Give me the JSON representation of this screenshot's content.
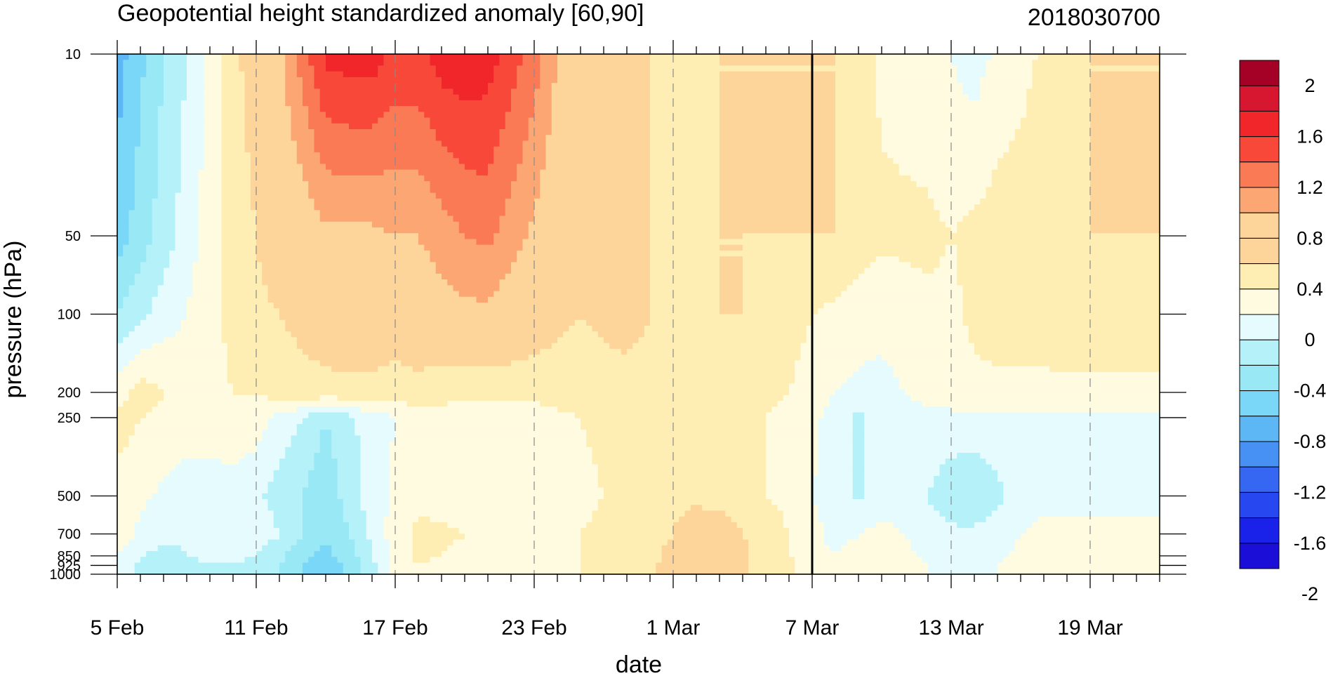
{
  "chart_data": {
    "type": "heatmap",
    "title": "Geopotential height standardized anomaly [60,90]",
    "right_title": "2018030700",
    "xlabel": "date",
    "ylabel": "pressure (hPa)",
    "x_tick_labels": [
      "5 Feb",
      "11 Feb",
      "17 Feb",
      "23 Feb",
      "1 Mar",
      "7 Mar",
      "13 Mar",
      "19 Mar"
    ],
    "x_tick_days": [
      0,
      6,
      12,
      18,
      24,
      30,
      36,
      42
    ],
    "x_range_days": [
      0,
      45
    ],
    "current_date_day": 30,
    "y_ticks": [
      {
        "p": 10,
        "label": "10"
      },
      {
        "p": 50,
        "label": "50"
      },
      {
        "p": 100,
        "label": "100"
      },
      {
        "p": 200,
        "label": "200"
      },
      {
        "p": 250,
        "label": "250"
      },
      {
        "p": 500,
        "label": "500"
      },
      {
        "p": 700,
        "label": "700"
      },
      {
        "p": 850,
        "label": "850"
      },
      {
        "p": 925,
        "label": "925"
      },
      {
        "p": 1000,
        "label": "1000"
      }
    ],
    "y_range_hpa": [
      1000,
      10
    ],
    "y_scale": "log",
    "colorbar": {
      "labels": [
        "2",
        "1.6",
        "1.2",
        "0.8",
        "0.4",
        "0",
        "-0.4",
        "-0.8",
        "-1.2",
        "-1.6",
        "-2"
      ],
      "colors": [
        "#a50026",
        "#d7172f",
        "#f0262b",
        "#f74839",
        "#fa7a56",
        "#fca773",
        "#fdd49a",
        "#fdd49a",
        "#feeeb4",
        "#fffbe1",
        "#e5fbfd",
        "#b4f1f9",
        "#98e8f6",
        "#7ad7f7",
        "#5eb7f5",
        "#4791f5",
        "#3667f3",
        "#2747f0",
        "#1a22ea",
        "#1a0ed7"
      ]
    },
    "dates": [
      "5 Feb",
      "6 Feb",
      "7 Feb",
      "8 Feb",
      "9 Feb",
      "10 Feb",
      "11 Feb",
      "12 Feb",
      "13 Feb",
      "14 Feb",
      "15 Feb",
      "16 Feb",
      "17 Feb",
      "18 Feb",
      "19 Feb",
      "20 Feb",
      "21 Feb",
      "22 Feb",
      "23 Feb",
      "24 Feb",
      "25 Feb",
      "26 Feb",
      "27 Feb",
      "28 Feb",
      "1 Mar",
      "2 Mar",
      "3 Mar",
      "4 Mar",
      "5 Mar",
      "6 Mar",
      "7 Mar",
      "8 Mar",
      "9 Mar",
      "10 Mar",
      "11 Mar",
      "12 Mar",
      "13 Mar",
      "14 Mar",
      "15 Mar",
      "16 Mar",
      "17 Mar",
      "18 Mar",
      "19 Mar",
      "20 Mar",
      "21 Mar"
    ],
    "levels_hpa": [
      10,
      50,
      100,
      200,
      250,
      500,
      700,
      850,
      925,
      1000
    ],
    "values": [
      [
        -0.7,
        -0.45,
        -0.2,
        0.0,
        0.25,
        0.55,
        0.7,
        0.95,
        1.3,
        1.65,
        1.7,
        1.7,
        1.55,
        1.55,
        1.7,
        1.75,
        1.7,
        1.5,
        1.3,
        1.0,
        0.9,
        0.8,
        0.75,
        0.6,
        0.55,
        0.5,
        0.6,
        0.6,
        0.6,
        0.6,
        0.6,
        0.6,
        0.5,
        0.35,
        0.3,
        0.25,
        0.2,
        0.1,
        0.25,
        0.3,
        0.45,
        0.55,
        0.6,
        0.6,
        0.6
      ],
      [
        -0.5,
        -0.3,
        -0.1,
        0.1,
        0.3,
        0.5,
        0.6,
        0.75,
        0.85,
        0.95,
        0.95,
        0.95,
        1.0,
        1.0,
        1.1,
        1.2,
        1.25,
        1.1,
        0.95,
        0.8,
        0.75,
        0.7,
        0.65,
        0.6,
        0.55,
        0.55,
        0.6,
        0.6,
        0.6,
        0.6,
        0.6,
        0.6,
        0.5,
        0.45,
        0.45,
        0.45,
        0.4,
        0.45,
        0.5,
        0.55,
        0.6,
        0.6,
        0.6,
        0.6,
        0.6
      ],
      [
        -0.2,
        -0.05,
        0.1,
        0.2,
        0.35,
        0.45,
        0.55,
        0.6,
        0.65,
        0.7,
        0.75,
        0.75,
        0.75,
        0.85,
        0.9,
        0.95,
        0.95,
        0.85,
        0.75,
        0.65,
        0.6,
        0.65,
        0.7,
        0.6,
        0.55,
        0.6,
        0.6,
        0.6,
        0.55,
        0.5,
        0.4,
        0.35,
        0.3,
        0.25,
        0.3,
        0.35,
        0.35,
        0.45,
        0.5,
        0.5,
        0.5,
        0.55,
        0.55,
        0.55,
        0.55
      ],
      [
        0.3,
        0.5,
        0.4,
        0.3,
        0.35,
        0.4,
        0.4,
        0.5,
        0.55,
        0.55,
        0.55,
        0.55,
        0.5,
        0.5,
        0.45,
        0.45,
        0.45,
        0.45,
        0.45,
        0.5,
        0.5,
        0.5,
        0.5,
        0.5,
        0.5,
        0.5,
        0.5,
        0.5,
        0.45,
        0.4,
        0.3,
        0.2,
        0.15,
        0.15,
        0.2,
        0.25,
        0.3,
        0.35,
        0.35,
        0.35,
        0.35,
        0.35,
        0.35,
        0.35,
        0.35
      ],
      [
        0.5,
        0.4,
        0.35,
        0.3,
        0.3,
        0.35,
        0.3,
        0.15,
        0.0,
        -0.2,
        -0.05,
        0.1,
        0.2,
        0.35,
        0.35,
        0.3,
        0.25,
        0.25,
        0.3,
        0.35,
        0.4,
        0.45,
        0.5,
        0.5,
        0.5,
        0.5,
        0.45,
        0.45,
        0.4,
        0.35,
        0.25,
        0.1,
        -0.05,
        0.1,
        0.15,
        0.15,
        0.15,
        0.15,
        0.15,
        0.15,
        0.15,
        0.15,
        0.15,
        0.15,
        0.15
      ],
      [
        0.3,
        0.25,
        0.15,
        0.1,
        0.1,
        0.1,
        0.05,
        -0.1,
        -0.2,
        -0.35,
        -0.1,
        0.1,
        0.25,
        0.35,
        0.3,
        0.25,
        0.2,
        0.25,
        0.3,
        0.3,
        0.35,
        0.4,
        0.5,
        0.55,
        0.55,
        0.55,
        0.5,
        0.45,
        0.4,
        0.35,
        0.2,
        0.1,
        -0.05,
        0.1,
        0.1,
        0.0,
        -0.15,
        -0.2,
        -0.05,
        0.1,
        0.15,
        0.15,
        0.15,
        0.15,
        0.15
      ],
      [
        0.35,
        0.15,
        0.1,
        0.05,
        0.0,
        0.05,
        0.15,
        0.0,
        -0.2,
        -0.4,
        -0.2,
        0.05,
        0.3,
        0.45,
        0.45,
        0.4,
        0.3,
        0.3,
        0.35,
        0.35,
        0.4,
        0.45,
        0.5,
        0.55,
        0.6,
        0.75,
        0.75,
        0.6,
        0.5,
        0.4,
        0.25,
        0.15,
        0.2,
        0.25,
        0.2,
        0.1,
        0.05,
        0.05,
        0.1,
        0.2,
        0.25,
        0.25,
        0.25,
        0.25,
        0.25
      ],
      [
        0.2,
        0.0,
        -0.1,
        0.0,
        0.05,
        0.05,
        0.0,
        -0.15,
        -0.35,
        -0.45,
        -0.3,
        0.0,
        0.3,
        0.45,
        0.4,
        0.35,
        0.3,
        0.3,
        0.35,
        0.35,
        0.4,
        0.45,
        0.5,
        0.55,
        0.65,
        0.85,
        0.85,
        0.65,
        0.5,
        0.4,
        0.25,
        0.2,
        0.25,
        0.3,
        0.25,
        0.15,
        0.1,
        0.1,
        0.15,
        0.25,
        0.3,
        0.3,
        0.3,
        0.3,
        0.3
      ],
      [
        0.15,
        -0.05,
        -0.1,
        -0.05,
        0.0,
        0.0,
        -0.05,
        -0.2,
        -0.4,
        -0.5,
        -0.35,
        -0.05,
        0.3,
        0.4,
        0.35,
        0.3,
        0.25,
        0.3,
        0.35,
        0.35,
        0.4,
        0.45,
        0.5,
        0.55,
        0.7,
        0.9,
        0.85,
        0.65,
        0.5,
        0.45,
        0.3,
        0.25,
        0.3,
        0.35,
        0.3,
        0.2,
        0.15,
        0.15,
        0.2,
        0.3,
        0.35,
        0.35,
        0.35,
        0.35,
        0.35
      ],
      [
        0.1,
        -0.05,
        -0.1,
        -0.05,
        0.0,
        0.0,
        -0.05,
        -0.2,
        -0.4,
        -0.5,
        -0.35,
        -0.05,
        0.3,
        0.4,
        0.35,
        0.3,
        0.25,
        0.3,
        0.35,
        0.35,
        0.4,
        0.45,
        0.5,
        0.55,
        0.7,
        0.9,
        0.85,
        0.65,
        0.5,
        0.45,
        0.3,
        0.25,
        0.3,
        0.35,
        0.3,
        0.2,
        0.15,
        0.15,
        0.2,
        0.3,
        0.35,
        0.35,
        0.35,
        0.35,
        0.35
      ]
    ]
  }
}
